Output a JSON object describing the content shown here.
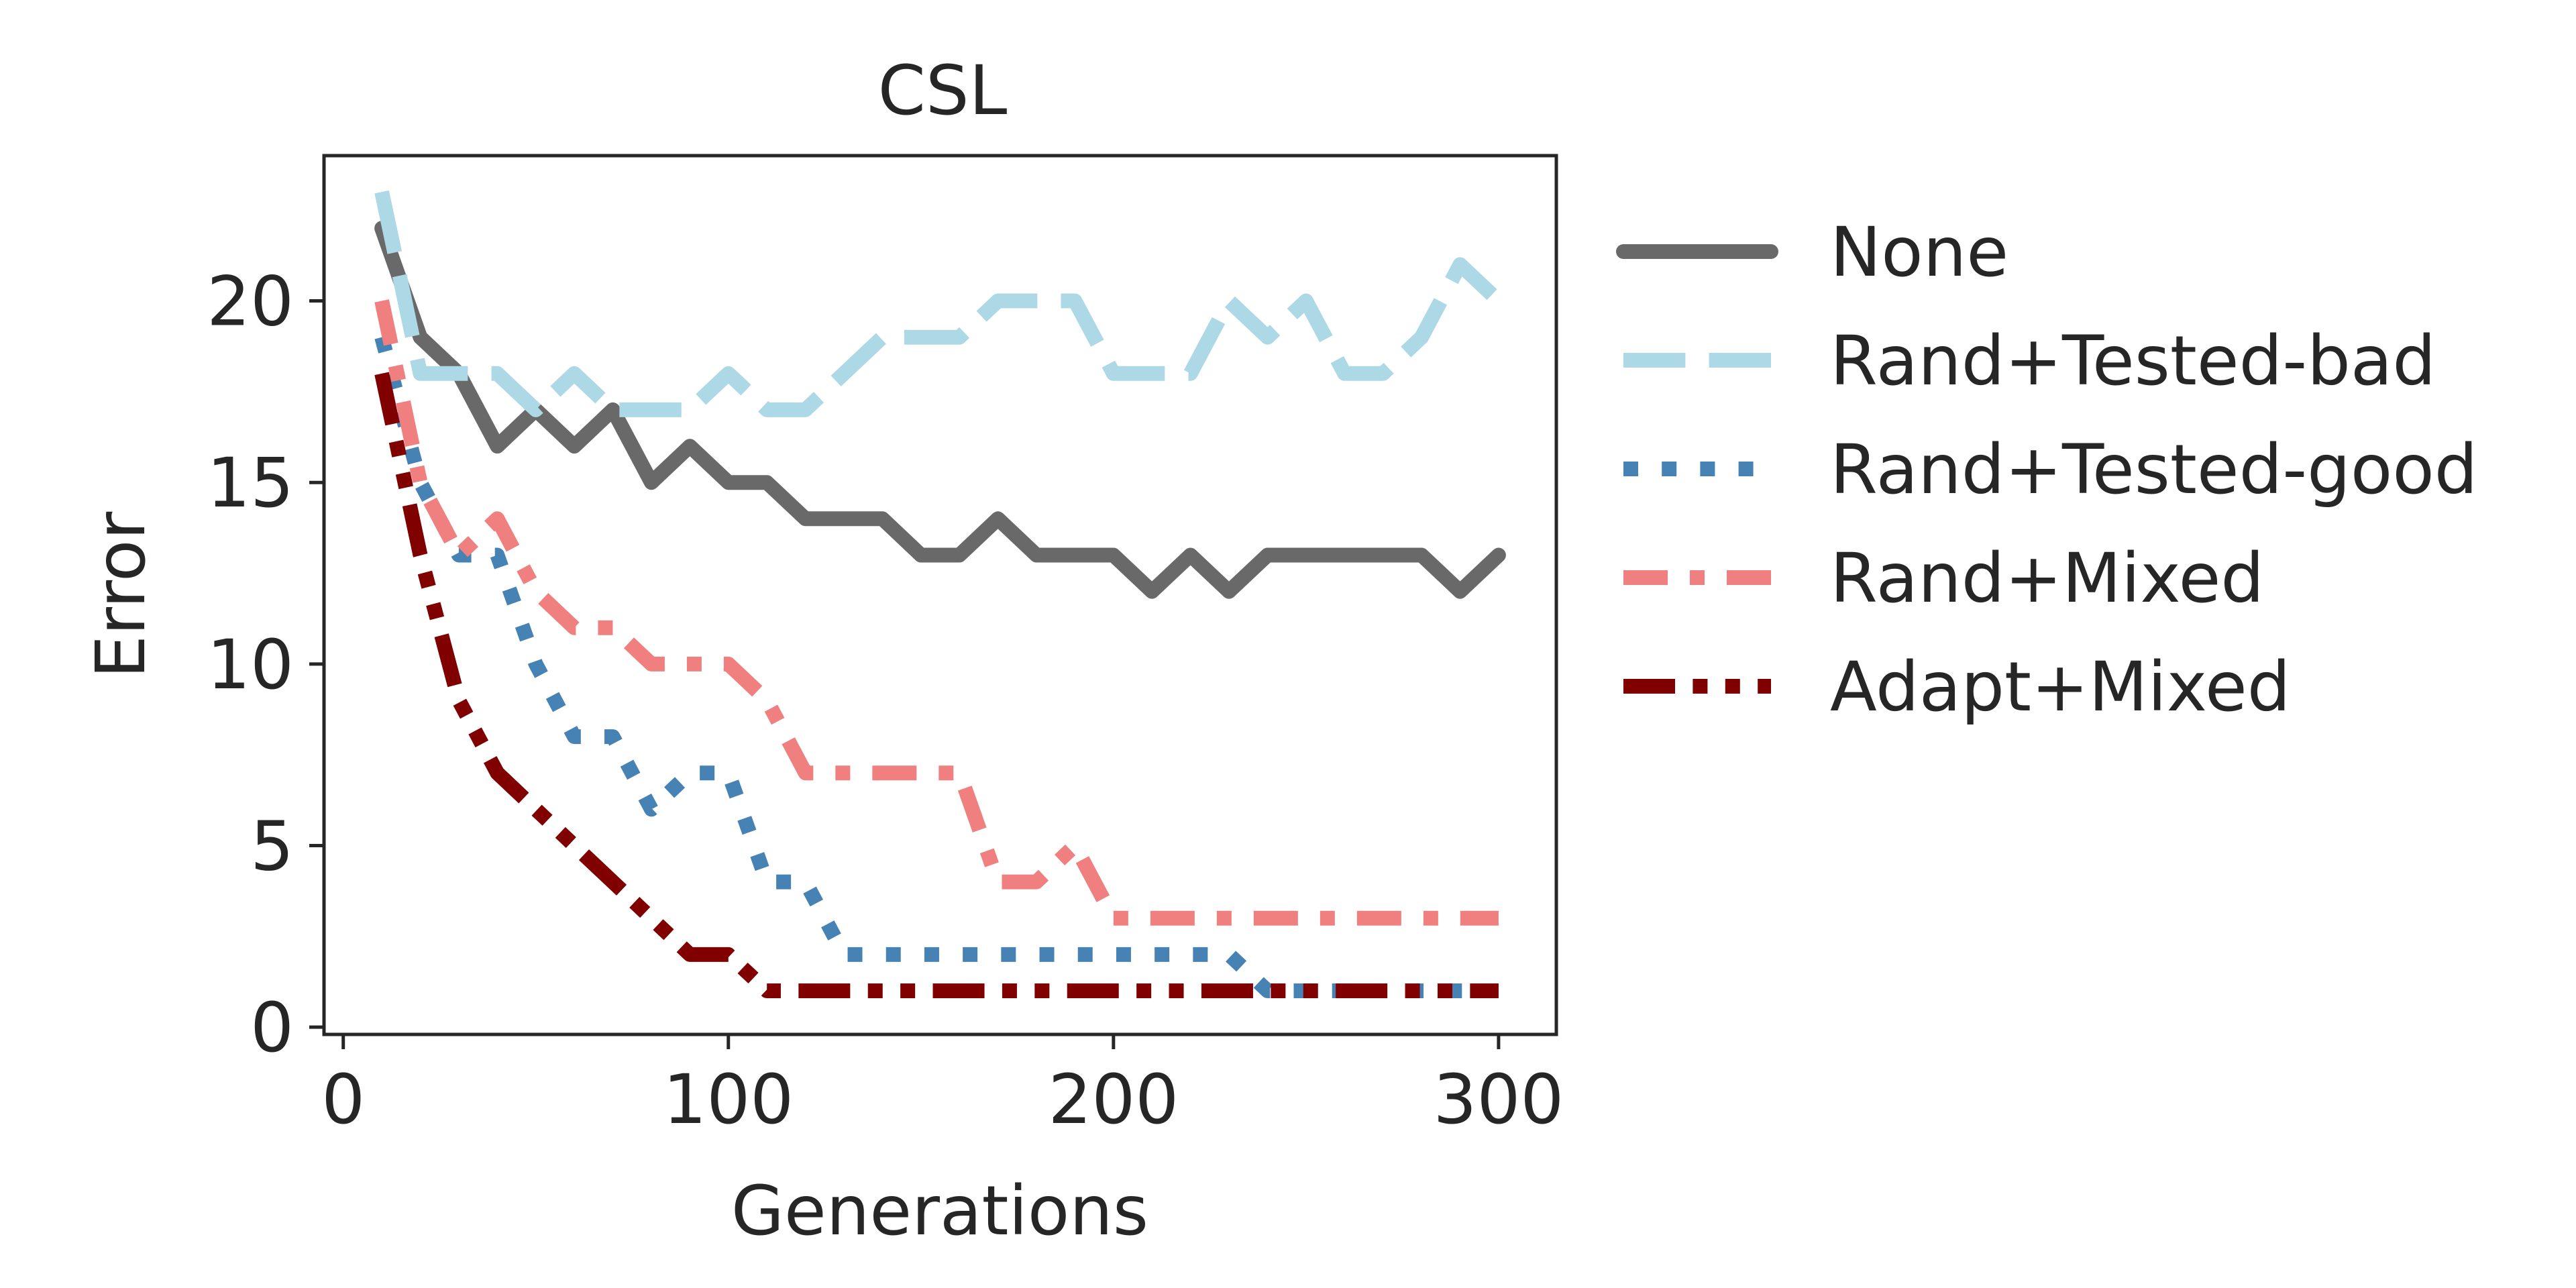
{
  "chart_data": {
    "type": "line",
    "title": "CSL",
    "xlabel": "Generations",
    "ylabel": "Error",
    "xlim": [
      -5,
      315
    ],
    "ylim": [
      -0.2,
      24
    ],
    "xticks": [
      0,
      100,
      200,
      300
    ],
    "yticks": [
      0,
      5,
      10,
      15,
      20
    ],
    "grid": false,
    "legend_position": "outside-right",
    "x": [
      10,
      20,
      30,
      40,
      50,
      60,
      70,
      80,
      90,
      100,
      110,
      120,
      130,
      140,
      150,
      160,
      170,
      180,
      190,
      200,
      210,
      220,
      230,
      240,
      250,
      260,
      270,
      280,
      290,
      300
    ],
    "series": [
      {
        "name": "None",
        "color": "#696969",
        "dash": "solid",
        "values": [
          22,
          19,
          18,
          16,
          17,
          16,
          17,
          15,
          16,
          15,
          15,
          14,
          14,
          14,
          13,
          13,
          14,
          13,
          13,
          13,
          12,
          13,
          12,
          13,
          13,
          13,
          13,
          13,
          12,
          13
        ]
      },
      {
        "name": "Rand+Tested-bad",
        "color": "#add8e6",
        "dash": "dashed",
        "values": [
          23,
          18,
          18,
          18,
          17,
          18,
          17,
          17,
          17,
          18,
          17,
          17,
          18,
          19,
          19,
          19,
          20,
          20,
          20,
          18,
          18,
          18,
          20,
          19,
          20,
          18,
          18,
          19,
          21,
          20
        ]
      },
      {
        "name": "Rand+Tested-good",
        "color": "#4682b4",
        "dash": "dotted",
        "values": [
          19,
          15,
          13,
          13,
          10,
          8,
          8,
          6,
          7,
          7,
          4,
          4,
          2,
          2,
          2,
          2,
          2,
          2,
          2,
          2,
          2,
          2,
          2,
          1,
          1,
          1,
          1,
          1,
          1,
          1
        ]
      },
      {
        "name": "Rand+Mixed",
        "color": "#f08080",
        "dash": "dashdot-short",
        "values": [
          20,
          15,
          13,
          14,
          12,
          11,
          11,
          10,
          10,
          10,
          9,
          7,
          7,
          7,
          7,
          7,
          4,
          4,
          5,
          3,
          3,
          3,
          3,
          3,
          3,
          3,
          3,
          3,
          3,
          3
        ]
      },
      {
        "name": "Adapt+Mixed",
        "color": "#800000",
        "dash": "dashdotdot",
        "values": [
          18,
          13,
          9,
          7,
          6,
          5,
          4,
          3,
          2,
          2,
          1,
          1,
          1,
          1,
          1,
          1,
          1,
          1,
          1,
          1,
          1,
          1,
          1,
          1,
          1,
          1,
          1,
          1,
          1,
          1
        ]
      }
    ]
  }
}
